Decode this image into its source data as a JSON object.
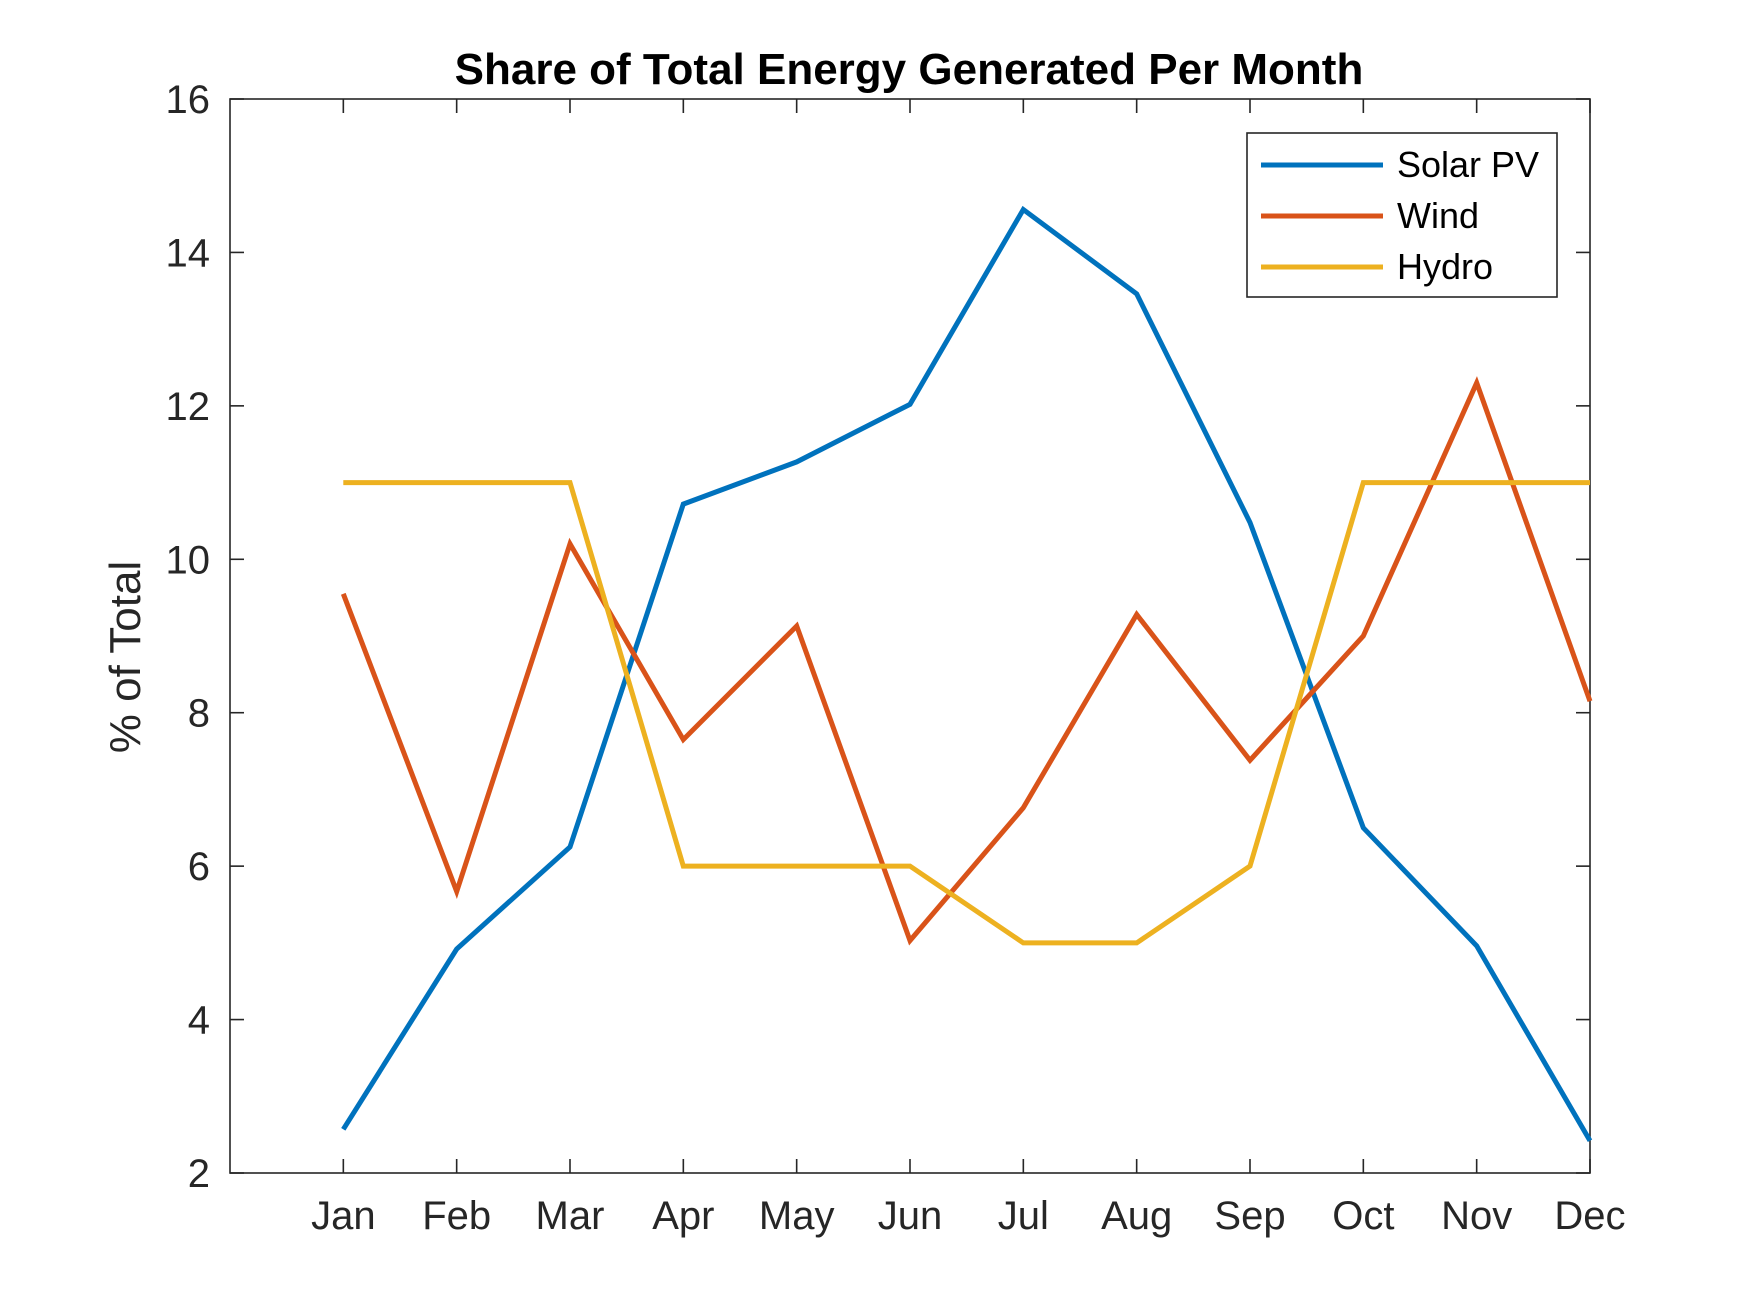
{
  "chart_data": {
    "type": "line",
    "title": "Share of Total Energy Generated Per Month",
    "xlabel": "",
    "ylabel": "% of Total",
    "categories": [
      "Jan",
      "Feb",
      "Mar",
      "Apr",
      "May",
      "Jun",
      "Jul",
      "Aug",
      "Sep",
      "Oct",
      "Nov",
      "Dec"
    ],
    "ylim": [
      2,
      16
    ],
    "yticks": [
      2,
      4,
      6,
      8,
      10,
      12,
      14,
      16
    ],
    "grid": false,
    "legend_position": "top-right",
    "series": [
      {
        "name": "Solar PV",
        "color": "#0072BD",
        "values": [
          2.57,
          4.92,
          6.25,
          10.72,
          11.27,
          12.02,
          14.56,
          13.46,
          10.48,
          6.5,
          4.96,
          2.42
        ]
      },
      {
        "name": "Wind",
        "color": "#D95319",
        "values": [
          9.55,
          5.67,
          10.2,
          7.65,
          9.13,
          5.03,
          6.76,
          9.28,
          7.38,
          9.0,
          12.3,
          8.15
        ]
      },
      {
        "name": "Hydro",
        "color": "#EDB120",
        "values": [
          11.0,
          11.0,
          11.0,
          6.0,
          6.0,
          6.0,
          5.0,
          5.0,
          6.0,
          11.0,
          11.0,
          11.0
        ]
      }
    ]
  }
}
